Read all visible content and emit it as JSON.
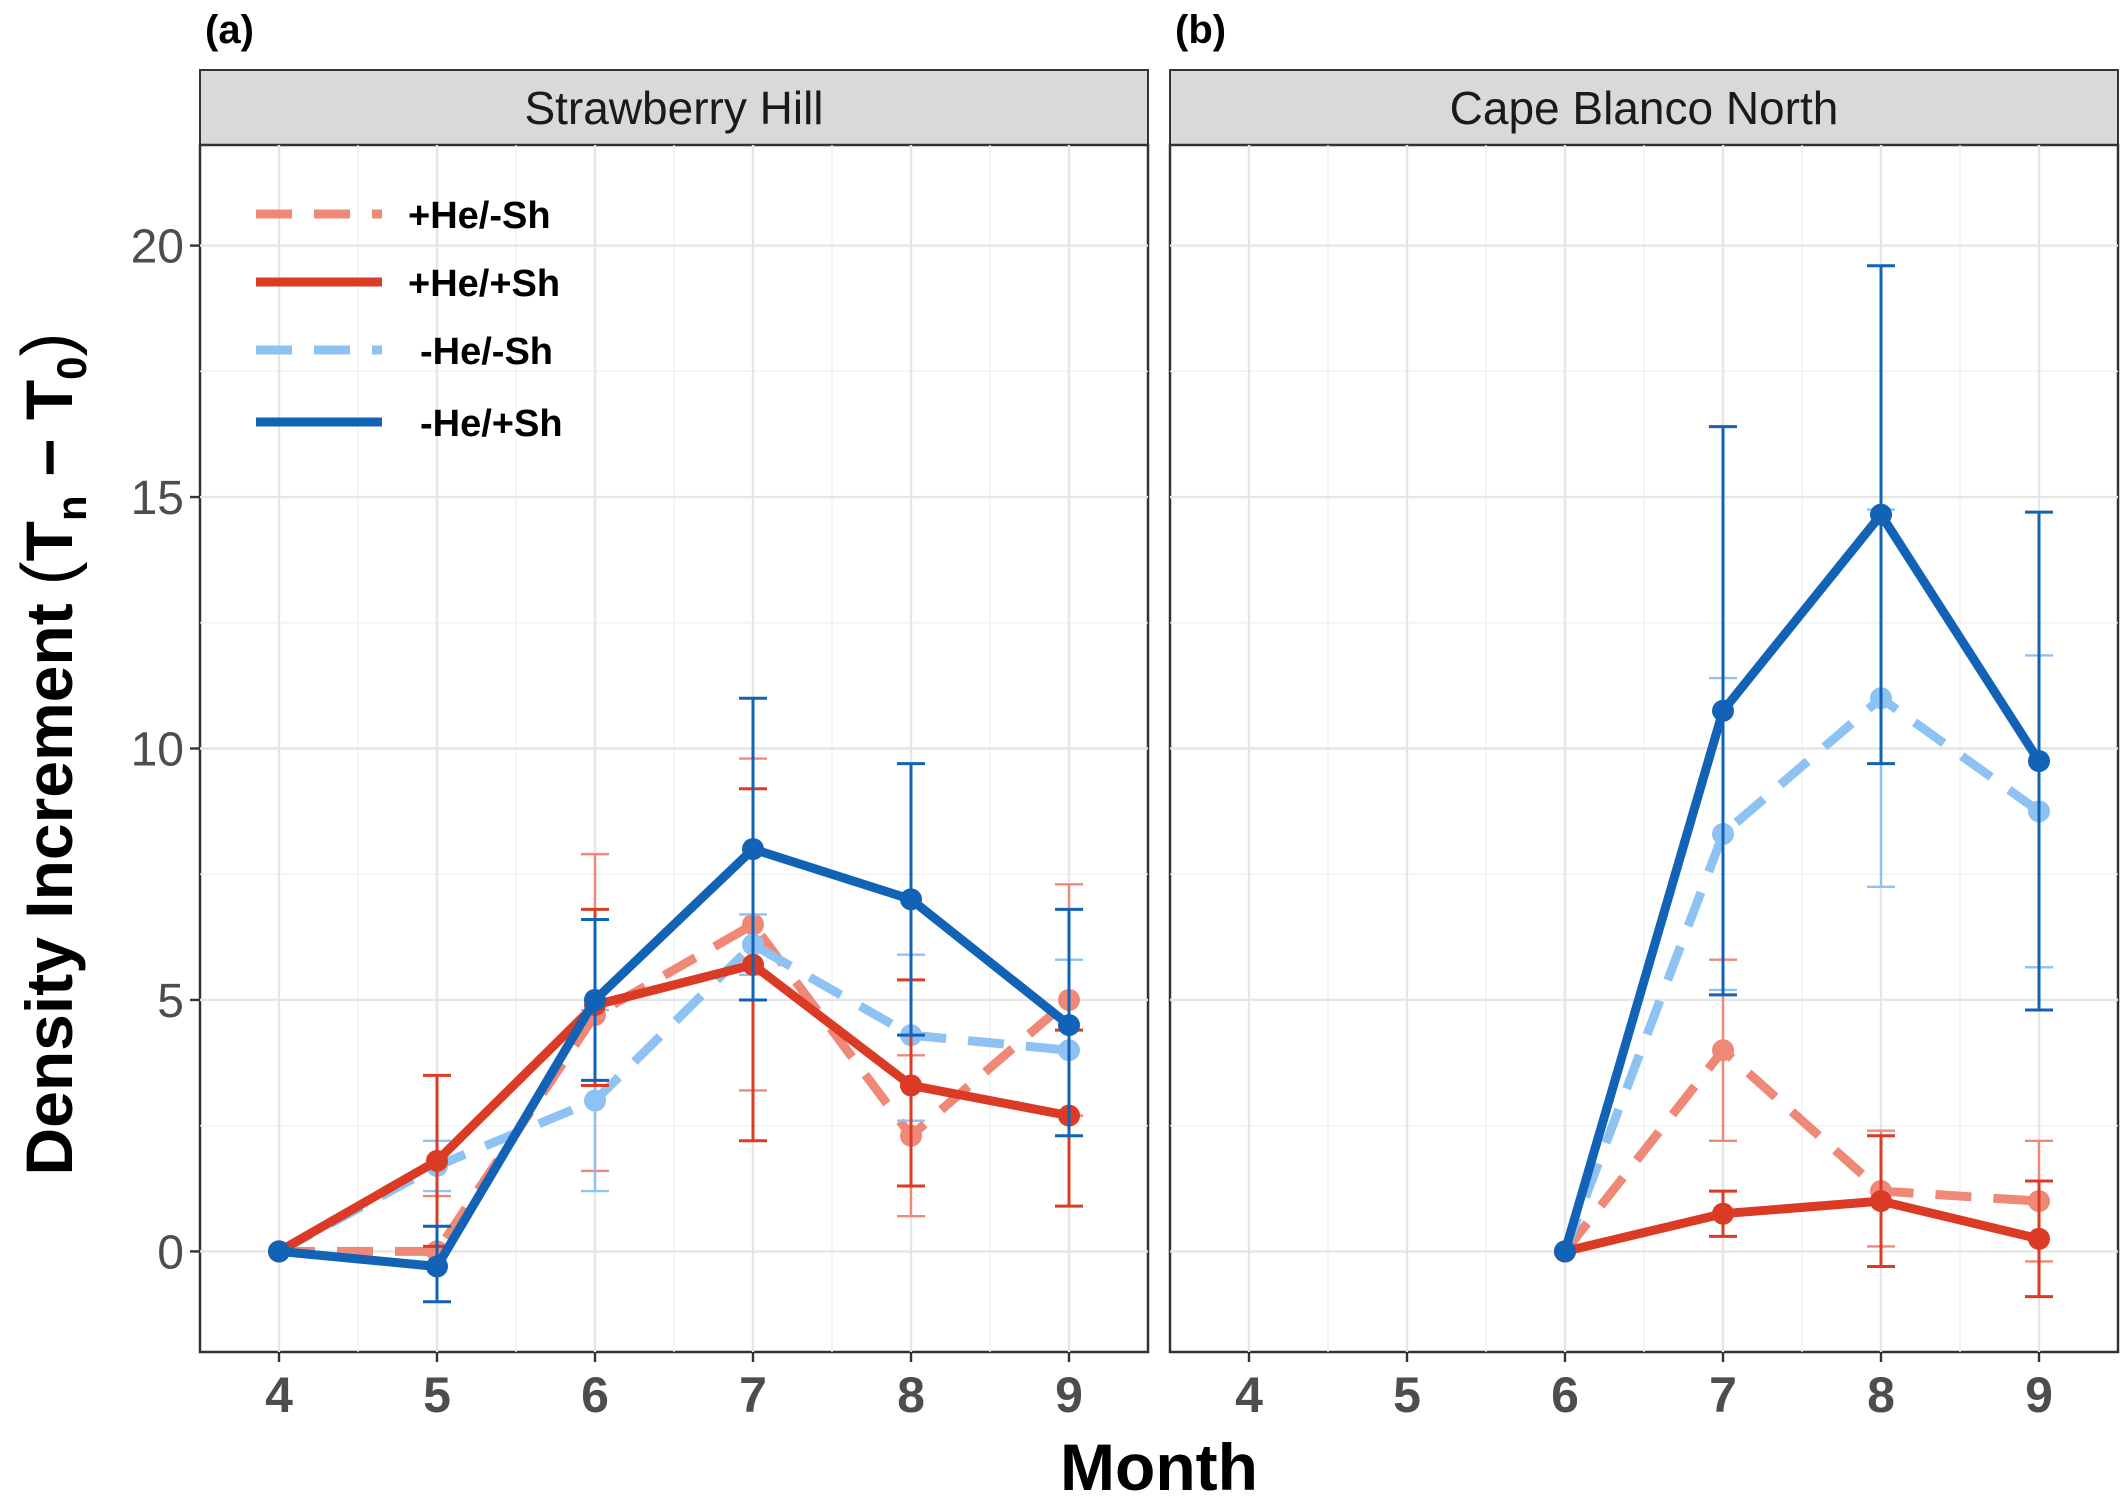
{
  "axes": {
    "x_title": "Month",
    "y_title_main": "Density Increment",
    "y_title_expr": {
      "open": "(",
      "T": "T",
      "sub_n": "n",
      "minus": " − ",
      "sub_0": "0",
      "close": ")"
    }
  },
  "legend": {
    "placement": "top-left (inside panel a)",
    "entries": [
      {
        "label": "+He/-Sh",
        "color": "#F08878",
        "dashed": true
      },
      {
        "label": "+He/+Sh",
        "color": "#DB3A25",
        "dashed": false
      },
      {
        "label": "-He/-Sh",
        "color": "#8EC2F2",
        "dashed": true
      },
      {
        "label": "-He/+Sh",
        "color": "#1262B5",
        "dashed": false
      }
    ]
  },
  "chart_data": [
    {
      "panel_letter": "(a)",
      "facet": "Strawberry Hill",
      "type": "line",
      "xlabel": "Month",
      "ylabel": "Density Increment (Tn − T0)",
      "xlim": [
        3.5,
        9.5
      ],
      "ylim": [
        -2,
        22
      ],
      "x_ticks": [
        4,
        5,
        6,
        7,
        8,
        9
      ],
      "y_ticks": [
        0,
        5,
        10,
        15,
        20
      ],
      "grid": true,
      "series": [
        {
          "name": "+He/-Sh",
          "x": [
            4,
            5,
            6,
            7,
            8,
            9
          ],
          "y": [
            0,
            0,
            4.7,
            6.5,
            2.3,
            5.0
          ],
          "lower": [
            0,
            -1.0,
            1.6,
            3.2,
            0.7,
            2.7
          ],
          "upper": [
            0,
            1.1,
            7.9,
            9.8,
            3.9,
            7.3
          ]
        },
        {
          "name": "+He/+Sh",
          "x": [
            4,
            5,
            6,
            7,
            8,
            9
          ],
          "y": [
            0,
            1.8,
            4.9,
            5.7,
            3.3,
            2.7
          ],
          "lower": [
            0,
            0.1,
            3.3,
            2.2,
            1.3,
            0.9
          ],
          "upper": [
            0,
            3.5,
            6.8,
            9.2,
            5.4,
            4.4
          ]
        },
        {
          "name": "-He/-Sh",
          "x": [
            4,
            5,
            6,
            7,
            8,
            9
          ],
          "y": [
            0,
            1.7,
            3.0,
            6.1,
            4.3,
            4.0
          ],
          "lower": [
            0,
            1.2,
            1.2,
            5.5,
            2.6,
            2.3
          ],
          "upper": [
            0,
            2.2,
            4.8,
            6.7,
            5.9,
            5.8
          ]
        },
        {
          "name": "-He/+Sh",
          "x": [
            4,
            5,
            6,
            7,
            8,
            9
          ],
          "y": [
            0,
            -0.3,
            5.0,
            8.0,
            7.0,
            4.5
          ],
          "lower": [
            0,
            -1.0,
            3.4,
            5.0,
            4.3,
            2.3
          ],
          "upper": [
            0,
            0.5,
            6.6,
            11.0,
            9.7,
            6.8
          ]
        }
      ]
    },
    {
      "panel_letter": "(b)",
      "facet": "Cape Blanco North",
      "type": "line",
      "xlabel": "Month",
      "ylabel": "Density Increment (Tn − T0)",
      "xlim": [
        3.5,
        9.5
      ],
      "ylim": [
        -2,
        22
      ],
      "x_ticks": [
        4,
        5,
        6,
        7,
        8,
        9
      ],
      "y_ticks": [
        0,
        5,
        10,
        15,
        20
      ],
      "grid": true,
      "series": [
        {
          "name": "+He/-Sh",
          "x": [
            6,
            7,
            8,
            9
          ],
          "y": [
            0,
            4.0,
            1.2,
            1.0
          ],
          "lower": [
            0,
            2.2,
            0.1,
            -0.2
          ],
          "upper": [
            0,
            5.8,
            2.4,
            2.2
          ]
        },
        {
          "name": "+He/+Sh",
          "x": [
            6,
            7,
            8,
            9
          ],
          "y": [
            0,
            0.75,
            1.0,
            0.25
          ],
          "lower": [
            0,
            0.3,
            -0.3,
            -0.9
          ],
          "upper": [
            0,
            1.2,
            2.3,
            1.4
          ]
        },
        {
          "name": "-He/-Sh",
          "x": [
            6,
            7,
            8,
            9
          ],
          "y": [
            0,
            8.3,
            11.0,
            8.75
          ],
          "lower": [
            0,
            5.2,
            7.25,
            5.65
          ],
          "upper": [
            0,
            11.4,
            14.75,
            11.85
          ]
        },
        {
          "name": "-He/+Sh",
          "x": [
            6,
            7,
            8,
            9
          ],
          "y": [
            0,
            10.75,
            14.65,
            9.75
          ],
          "lower": [
            0,
            5.1,
            9.7,
            4.8
          ],
          "upper": [
            0,
            16.4,
            19.6,
            14.7
          ]
        }
      ]
    }
  ]
}
